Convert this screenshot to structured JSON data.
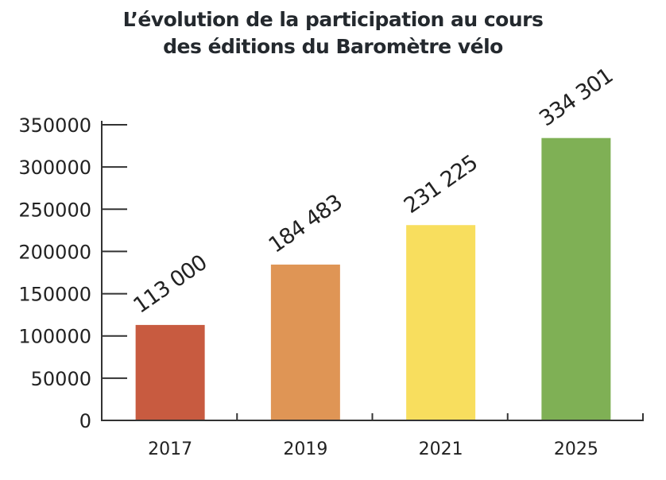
{
  "chart_data": {
    "type": "bar",
    "title_lines": [
      "L’évolution de la participation au cours",
      "des éditions du Baromètre vélo"
    ],
    "categories": [
      "2017",
      "2019",
      "2021",
      "2025"
    ],
    "values": [
      113000,
      184483,
      231225,
      334301
    ],
    "data_labels": [
      "113 000",
      "184 483",
      "231 225",
      "334 301"
    ],
    "colors": [
      "#c85b40",
      "#df9555",
      "#f8de5e",
      "#7fb055"
    ],
    "xlabel": "",
    "ylabel": "",
    "ylim": [
      0,
      350000
    ],
    "yticks": [
      0,
      50000,
      100000,
      150000,
      200000,
      250000,
      300000,
      350000
    ],
    "ytick_labels": [
      "0",
      "50000",
      "100000",
      "150000",
      "200000",
      "250000",
      "300000",
      "350000"
    ],
    "grid": false,
    "legend": "none",
    "axis_color": "#333333"
  }
}
